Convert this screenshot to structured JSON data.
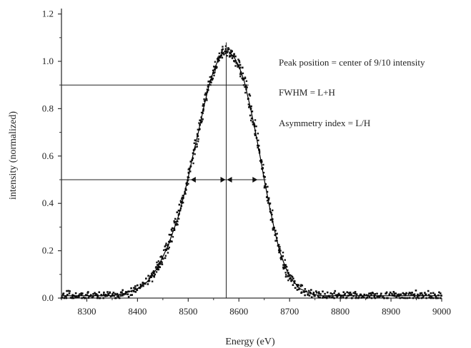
{
  "chart_data": {
    "type": "scatter",
    "title": "",
    "xlabel": "Energy (eV)",
    "ylabel": "intensity (normalized)",
    "xlim": [
      8250,
      9000
    ],
    "ylim": [
      0,
      1.25
    ],
    "xticks": [
      8300,
      8400,
      8500,
      8600,
      8700,
      8800,
      8900,
      9000
    ],
    "yticks": [
      "0.0",
      "0.2",
      "0.4",
      "0.6",
      "0.8",
      "1.0",
      "1.2"
    ],
    "grid": false,
    "series": [
      {
        "x": [
          8250,
          8275,
          8300,
          8325,
          8350,
          8375,
          8400,
          8420,
          8440,
          8460,
          8480,
          8490,
          8500,
          8510,
          8520,
          8530,
          8540,
          8550,
          8560,
          8570,
          8580,
          8590,
          8600,
          8610,
          8620,
          8630,
          8640,
          8650,
          8660,
          8670,
          8680,
          8690,
          8700,
          8720,
          8740,
          8760,
          8780,
          8800,
          8850,
          8900,
          8950,
          9000
        ],
        "y": [
          0.01,
          0.01,
          0.01,
          0.01,
          0.01,
          0.02,
          0.04,
          0.07,
          0.13,
          0.22,
          0.34,
          0.42,
          0.51,
          0.61,
          0.7,
          0.8,
          0.89,
          0.96,
          1.01,
          1.04,
          1.04,
          1.02,
          0.98,
          0.92,
          0.83,
          0.73,
          0.62,
          0.5,
          0.39,
          0.29,
          0.2,
          0.14,
          0.09,
          0.04,
          0.02,
          0.01,
          0.01,
          0.01,
          0.01,
          0.01,
          0.01,
          0.01
        ]
      }
    ],
    "markers": {
      "peak_position_x": 8575,
      "nine_tenths_level": 0.9,
      "half_max_level": 0.5,
      "half_max_left_x": 8505,
      "half_max_right_x": 8648
    },
    "annotations": [
      "Peak position = center of 9/10 intensity",
      "FWHM = L+H",
      "Asymmetry index = L/H"
    ]
  }
}
